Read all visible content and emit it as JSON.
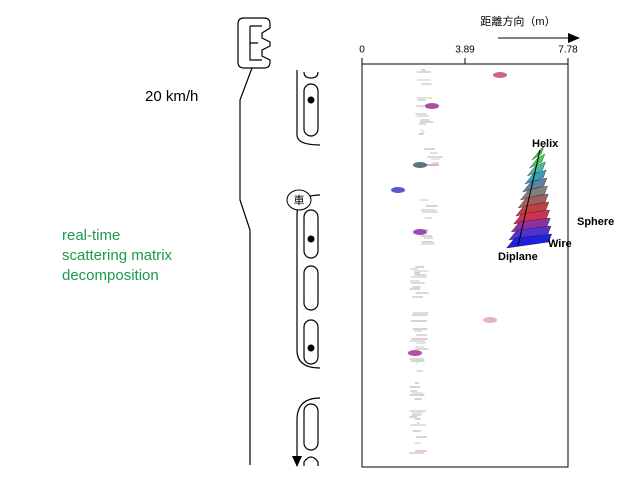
{
  "speed": "20 km/h",
  "method": [
    "real-time",
    "scattering matrix",
    "decomposition"
  ],
  "vehicle": "車",
  "axis": {
    "title": "距離方向（m）",
    "ticks": [
      0,
      3.89,
      7.78
    ]
  },
  "legend": {
    "helix": "Helix",
    "sphere": "Sphere",
    "wire": "Wire",
    "diplane": "Diplane"
  }
}
